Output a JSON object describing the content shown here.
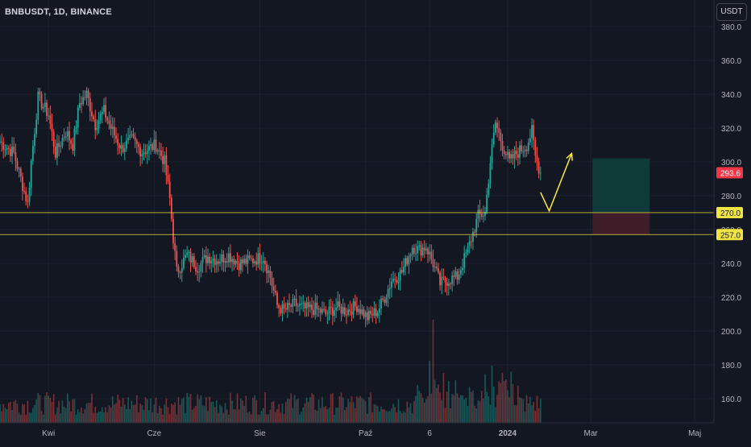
{
  "header": {
    "symbol_title": "BNBUSDT, 1D, BINANCE",
    "currency_button": "USDT"
  },
  "chart_data": {
    "type": "candlestick",
    "title": "BNBUSDT, 1D, BINANCE",
    "price_axis": {
      "unit": "USDT",
      "range": [
        145,
        385
      ],
      "ticks": [
        "380.0",
        "360.0",
        "340.0",
        "320.0",
        "300.0",
        "280.0",
        "260.0",
        "240.0",
        "220.0",
        "200.0",
        "180.0",
        "160.0"
      ],
      "tick_values": [
        380,
        360,
        340,
        320,
        300,
        280,
        260,
        240,
        220,
        200,
        180,
        160
      ]
    },
    "time_axis": {
      "labels": [
        "Kwi",
        "Cze",
        "Sie",
        "Paź",
        "6",
        "2024",
        "Mar",
        "Maj"
      ],
      "label_days": [
        28,
        89,
        150,
        211,
        248,
        293,
        341,
        401
      ]
    },
    "last_price": {
      "label": "293.6",
      "value": 293.6,
      "color": "#f23645"
    },
    "horizontal_levels": [
      {
        "label": "270.0",
        "value": 270.0,
        "color": "#f0e442"
      },
      {
        "label": "257.0",
        "value": 257.0,
        "color": "#f0e442"
      }
    ],
    "position_tool": {
      "entry": 270.0,
      "target": 302.0,
      "stop": 257.0,
      "start_day": 342,
      "end_day": 375,
      "profit_color": "#0e3b37",
      "loss_color": "#3e1d29"
    },
    "forecast_path": {
      "points": [
        [
          312,
          282
        ],
        [
          317,
          271
        ],
        [
          330,
          305
        ]
      ],
      "color": "#ffeb3b"
    },
    "colors": {
      "up": "#26a69a",
      "down": "#ef5350",
      "background": "#131722",
      "grid": "#1e222d"
    },
    "series": [
      {
        "name": "",
        "anchors_day_price": [
          [
            0,
            312
          ],
          [
            8,
            305
          ],
          [
            12,
            290
          ],
          [
            16,
            275
          ],
          [
            18,
            300
          ],
          [
            22,
            338
          ],
          [
            28,
            328
          ],
          [
            32,
            305
          ],
          [
            38,
            318
          ],
          [
            42,
            310
          ],
          [
            46,
            335
          ],
          [
            50,
            340
          ],
          [
            55,
            322
          ],
          [
            60,
            330
          ],
          [
            64,
            320
          ],
          [
            70,
            308
          ],
          [
            76,
            313
          ],
          [
            82,
            306
          ],
          [
            90,
            310
          ],
          [
            95,
            300
          ],
          [
            98,
            278
          ],
          [
            100,
            255
          ],
          [
            102,
            235
          ],
          [
            108,
            245
          ],
          [
            114,
            238
          ],
          [
            120,
            244
          ],
          [
            126,
            242
          ],
          [
            132,
            245
          ],
          [
            138,
            240
          ],
          [
            146,
            242
          ],
          [
            152,
            244
          ],
          [
            156,
            232
          ],
          [
            160,
            215
          ],
          [
            164,
            212
          ],
          [
            170,
            216
          ],
          [
            176,
            213
          ],
          [
            182,
            213
          ],
          [
            188,
            210
          ],
          [
            194,
            214
          ],
          [
            200,
            212
          ],
          [
            206,
            215
          ],
          [
            212,
            208
          ],
          [
            218,
            212
          ],
          [
            222,
            220
          ],
          [
            226,
            230
          ],
          [
            232,
            235
          ],
          [
            238,
            250
          ],
          [
            242,
            248
          ],
          [
            246,
            250
          ],
          [
            250,
            240
          ],
          [
            254,
            228
          ],
          [
            258,
            230
          ],
          [
            264,
            232
          ],
          [
            270,
            248
          ],
          [
            276,
            268
          ],
          [
            280,
            270
          ],
          [
            283,
            300
          ],
          [
            286,
            323
          ],
          [
            290,
            310
          ],
          [
            294,
            300
          ],
          [
            298,
            305
          ],
          [
            304,
            310
          ],
          [
            307,
            318
          ],
          [
            309,
            303
          ],
          [
            312,
            293.6
          ]
        ]
      }
    ],
    "volume": {
      "scale": "relative",
      "spikes_days": [
        248,
        248,
        280,
        284,
        290,
        295
      ]
    }
  }
}
